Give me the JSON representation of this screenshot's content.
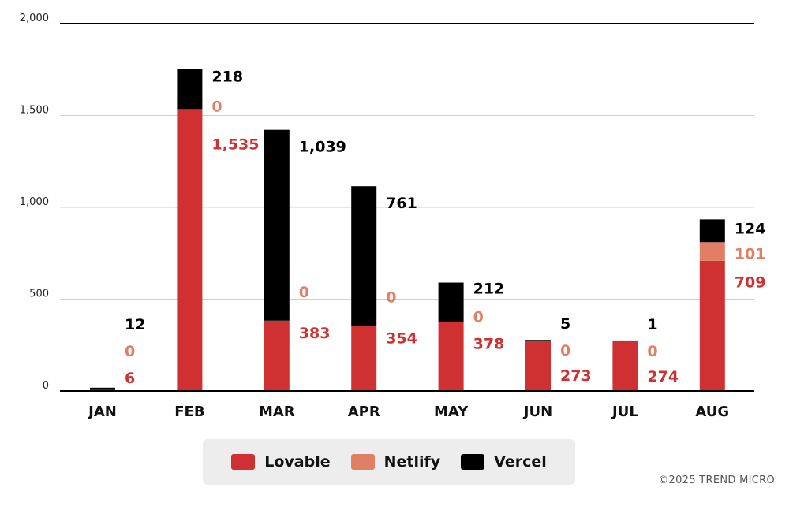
{
  "chart_data": {
    "type": "bar",
    "stacked": true,
    "categories": [
      "JAN",
      "FEB",
      "MAR",
      "APR",
      "MAY",
      "JUN",
      "JUL",
      "AUG"
    ],
    "series": [
      {
        "name": "Lovable",
        "color": "#cf3133",
        "label_color": "#cf3133",
        "values": [
          6,
          1535,
          383,
          354,
          378,
          273,
          274,
          709
        ],
        "labels": [
          "6",
          "1,535",
          "383",
          "354",
          "378",
          "273",
          "274",
          "709"
        ]
      },
      {
        "name": "Netlify",
        "color": "#e07f64",
        "label_color": "#e07f64",
        "values": [
          0,
          0,
          0,
          0,
          0,
          0,
          0,
          101
        ],
        "labels": [
          "0",
          "0",
          "0",
          "0",
          "0",
          "0",
          "0",
          "101"
        ]
      },
      {
        "name": "Vercel",
        "color": "#000000",
        "label_color": "#000000",
        "values": [
          12,
          218,
          1039,
          761,
          212,
          5,
          1,
          124
        ],
        "labels": [
          "12",
          "218",
          "1,039",
          "761",
          "212",
          "5",
          "1",
          "124"
        ]
      }
    ],
    "ylim": [
      0,
      2000
    ],
    "yticks": [
      0,
      500,
      1000,
      1500,
      2000
    ],
    "ytick_labels": [
      "0",
      "500",
      "1,000",
      "1,500",
      "2,000"
    ],
    "grid": true,
    "legend_position": "bottom-center",
    "xlabel": "",
    "ylabel": "",
    "title": ""
  },
  "legend": {
    "items": [
      {
        "label": "Lovable",
        "color": "#cf3133"
      },
      {
        "label": "Netlify",
        "color": "#e07f64"
      },
      {
        "label": "Vercel",
        "color": "#000000"
      }
    ]
  },
  "footer": {
    "copyright": "©2025 TREND MICRO"
  }
}
